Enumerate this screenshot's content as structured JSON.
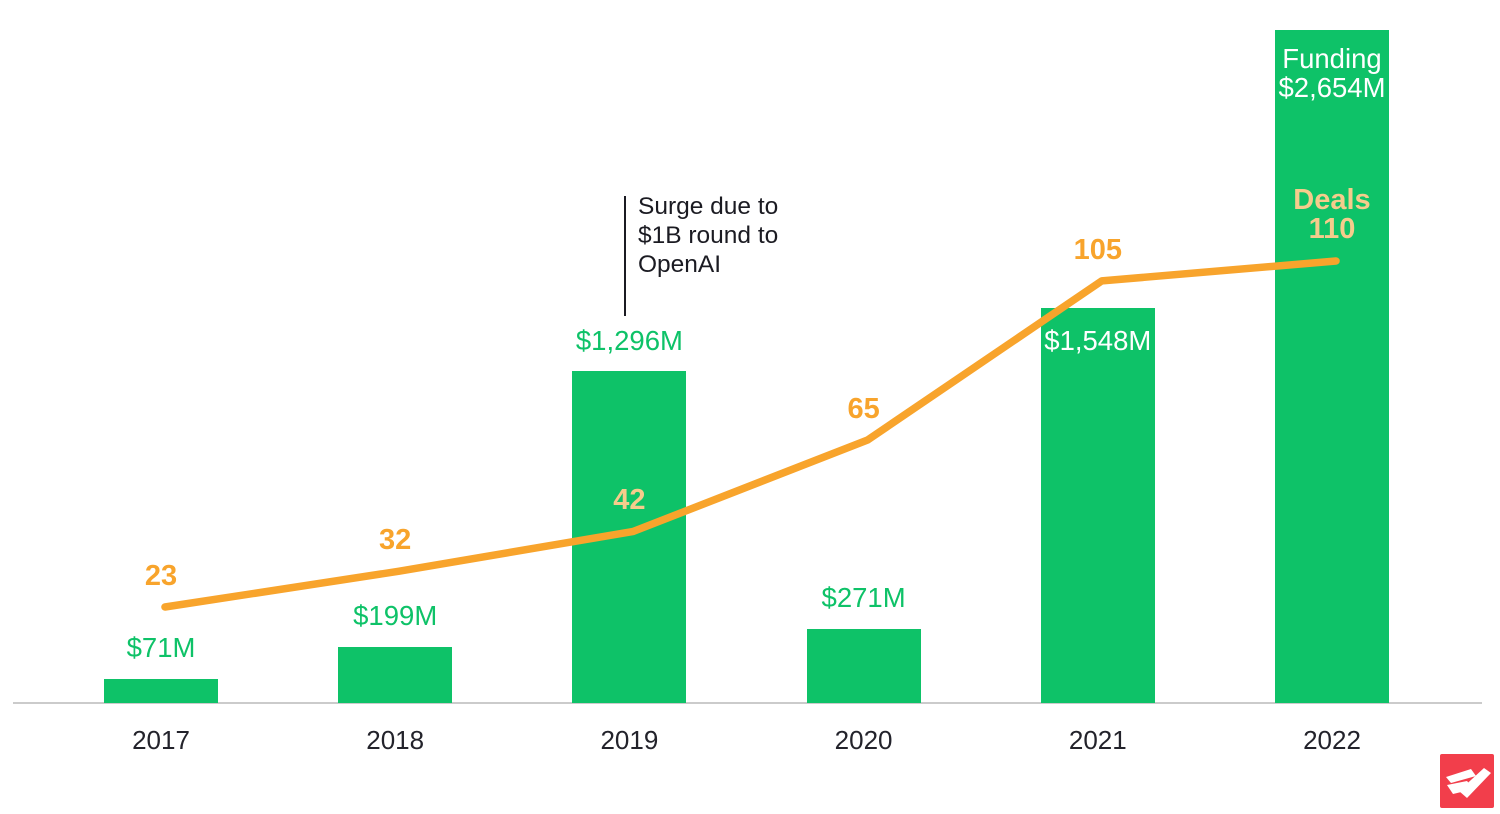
{
  "chart_data": {
    "type": "bar",
    "subtype": "bar-line-combo",
    "categories": [
      "2017",
      "2018",
      "2019",
      "2020",
      "2021",
      "2022"
    ],
    "series": [
      {
        "name": "Funding",
        "type": "bar",
        "unit": "$M",
        "values": [
          71,
          199,
          1296,
          271,
          1548,
          2654
        ],
        "labels": [
          "$71M",
          "$199M",
          "$1,296M",
          "$271M",
          "$1,548M",
          "$2,654M"
        ],
        "final_label_title": "Funding",
        "color": "#0ec268",
        "label_color_outside": "#0ec268",
        "label_color_inside": "#ffffff",
        "label_inside": [
          false,
          false,
          false,
          false,
          true,
          true
        ]
      },
      {
        "name": "Deals",
        "type": "line",
        "values": [
          23,
          32,
          42,
          65,
          105,
          110
        ],
        "labels": [
          "23",
          "32",
          "42",
          "65",
          "105",
          "110"
        ],
        "final_label_title": "Deals",
        "color": "#f8a42c",
        "label_color": "#f8a42c",
        "label_color_on_bar": "#f5cc8c",
        "label_on_bar": [
          false,
          false,
          true,
          false,
          false,
          true
        ]
      }
    ],
    "annotation": {
      "text": "Surge due to\n$1B round to\nOpenAI",
      "target_category": "2019"
    },
    "axis": {
      "baseline_color": "#cbcbcb",
      "tick_label_color": "#23232b"
    },
    "grid": false,
    "legend_position": "none",
    "background": "#ffffff"
  },
  "logo": {
    "name": "swift-bird-logo",
    "background": "#f23e4b",
    "glyph_color": "#ffffff"
  }
}
